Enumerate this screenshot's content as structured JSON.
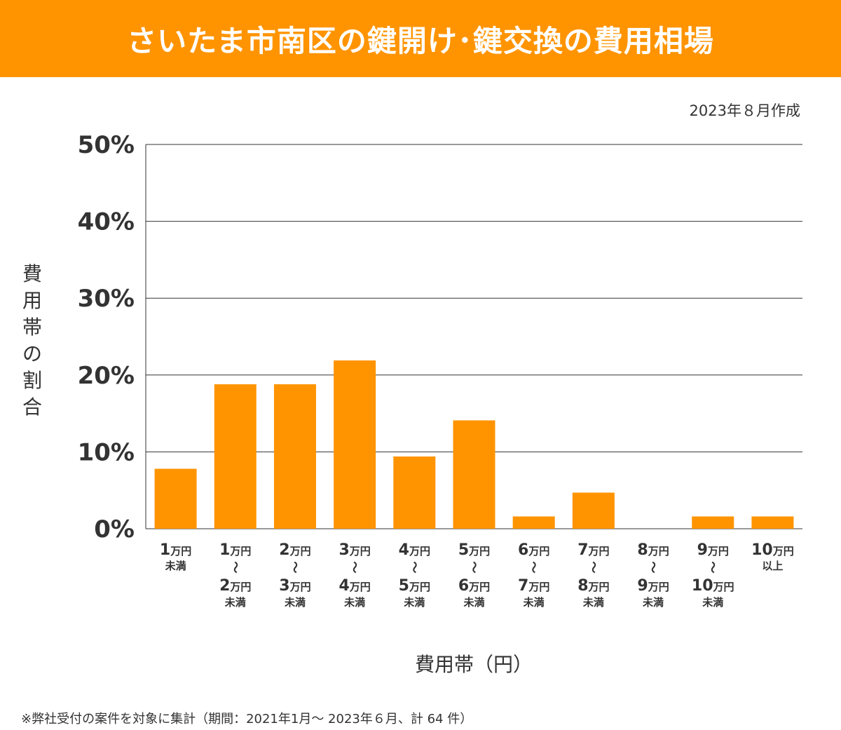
{
  "header": {
    "title": "さいたま市南区の鍵開け･鍵交換の費用相場",
    "date_note": "2023年８月作成"
  },
  "chart_data": {
    "type": "bar",
    "title": "さいたま市南区の鍵開け･鍵交換の費用相場",
    "ylabel": "費用帯の割合",
    "xlabel": "費用帯（円）",
    "ylim": [
      0,
      50
    ],
    "yticks": [
      0,
      10,
      20,
      30,
      40,
      50
    ],
    "ytick_labels": [
      "0%",
      "10%",
      "20%",
      "30%",
      "40%",
      "50%"
    ],
    "grid": true,
    "categories": [
      "1万円未満",
      "1万円〜2万円未満",
      "2万円〜3万円未満",
      "3万円〜4万円未満",
      "4万円〜5万円未満",
      "5万円〜6万円未満",
      "6万円〜7万円未満",
      "7万円〜8万円未満",
      "8万円〜9万円未満",
      "9万円〜10万円未満",
      "10万円以上"
    ],
    "category_labels": [
      {
        "from": "1",
        "to": "",
        "suffix": "未満"
      },
      {
        "from": "1",
        "to": "2",
        "suffix": "未満"
      },
      {
        "from": "2",
        "to": "3",
        "suffix": "未満"
      },
      {
        "from": "3",
        "to": "4",
        "suffix": "未満"
      },
      {
        "from": "4",
        "to": "5",
        "suffix": "未満"
      },
      {
        "from": "5",
        "to": "6",
        "suffix": "未満"
      },
      {
        "from": "6",
        "to": "7",
        "suffix": "未満"
      },
      {
        "from": "7",
        "to": "8",
        "suffix": "未満"
      },
      {
        "from": "8",
        "to": "9",
        "suffix": "未満"
      },
      {
        "from": "9",
        "to": "10",
        "suffix": "未満"
      },
      {
        "from": "10",
        "to": "",
        "suffix": "以上"
      }
    ],
    "unit_label": "万円",
    "tilde": "〜",
    "values": [
      7.8,
      18.8,
      18.8,
      21.9,
      9.4,
      14.1,
      1.6,
      4.7,
      0,
      1.6,
      1.6
    ],
    "bar_color": "#ff9400"
  },
  "axis": {
    "ylabel_chars": [
      "費",
      "用",
      "帯",
      "の",
      "割",
      "合"
    ],
    "xlabel": "費用帯（円）"
  },
  "footnote": "※弊社受付の案件を対象に集計（期間：2021年1月～ 2023年６月、計 64 件）",
  "colors": {
    "banner": "#ff9400",
    "bar": "#ff9400",
    "text": "#333333",
    "grid": "#333333"
  }
}
